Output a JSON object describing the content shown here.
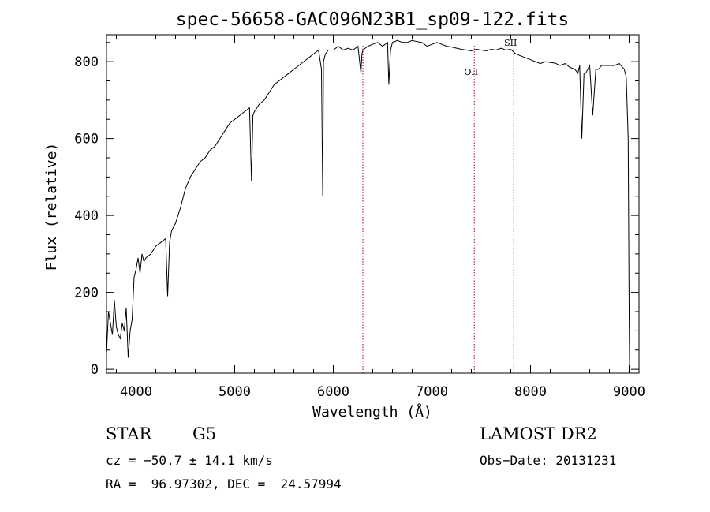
{
  "chart_data": {
    "type": "line",
    "title": "spec-56658-GAC096N23B1_sp09-122.fits",
    "xlabel": "Wavelength (Å)",
    "ylabel": "Flux (relative)",
    "xlim": [
      3700,
      9100
    ],
    "ylim": [
      -10,
      870
    ],
    "xticks": [
      4000,
      5000,
      6000,
      7000,
      8000,
      9000
    ],
    "yticks": [
      0,
      200,
      400,
      600,
      800
    ],
    "grid": false,
    "line_color": "#000000",
    "series": [
      {
        "x": [
          3700,
          3720,
          3740,
          3760,
          3780,
          3800,
          3820,
          3840,
          3860,
          3880,
          3900,
          3920,
          3940,
          3960,
          3980,
          4000,
          4020,
          4040,
          4060,
          4080,
          4100,
          4150,
          4200,
          4250,
          4300,
          4320,
          4340,
          4360,
          4400,
          4450,
          4500,
          4550,
          4600,
          4650,
          4700,
          4750,
          4800,
          4850,
          4900,
          4950,
          5000,
          5050,
          5100,
          5150,
          5170,
          5185,
          5200,
          5250,
          5300,
          5350,
          5400,
          5450,
          5500,
          5550,
          5600,
          5650,
          5700,
          5750,
          5800,
          5850,
          5880,
          5893,
          5900,
          5920,
          5950,
          6000,
          6050,
          6100,
          6150,
          6200,
          6250,
          6280,
          6290,
          6300,
          6350,
          6400,
          6450,
          6500,
          6550,
          6563,
          6580,
          6600,
          6650,
          6700,
          6750,
          6800,
          6850,
          6900,
          6950,
          7000,
          7050,
          7100,
          7150,
          7200,
          7250,
          7300,
          7350,
          7400,
          7450,
          7500,
          7550,
          7600,
          7650,
          7700,
          7750,
          7800,
          7850,
          7900,
          7950,
          8000,
          8050,
          8100,
          8150,
          8200,
          8250,
          8300,
          8350,
          8400,
          8450,
          8480,
          8498,
          8520,
          8542,
          8560,
          8600,
          8630,
          8662,
          8690,
          8720,
          8750,
          8800,
          8850,
          8900,
          8950,
          8970,
          8990,
          9000,
          9005
        ],
        "y": [
          40,
          150,
          120,
          90,
          180,
          110,
          90,
          80,
          120,
          100,
          160,
          30,
          100,
          130,
          240,
          260,
          290,
          250,
          300,
          280,
          290,
          300,
          320,
          330,
          340,
          190,
          330,
          360,
          380,
          420,
          470,
          500,
          520,
          540,
          550,
          570,
          580,
          600,
          620,
          640,
          650,
          660,
          670,
          680,
          490,
          660,
          670,
          690,
          700,
          720,
          740,
          750,
          760,
          770,
          780,
          790,
          800,
          810,
          820,
          830,
          780,
          450,
          800,
          820,
          830,
          830,
          840,
          830,
          835,
          830,
          840,
          770,
          820,
          830,
          840,
          845,
          850,
          840,
          850,
          740,
          830,
          850,
          855,
          850,
          850,
          855,
          852,
          850,
          840,
          845,
          850,
          845,
          840,
          838,
          835,
          832,
          830,
          828,
          832,
          830,
          828,
          832,
          830,
          835,
          830,
          832,
          820,
          815,
          810,
          805,
          800,
          795,
          800,
          798,
          796,
          790,
          795,
          785,
          780,
          770,
          790,
          600,
          770,
          770,
          790,
          660,
          780,
          780,
          790,
          790,
          790,
          790,
          795,
          780,
          760,
          600,
          150,
          0
        ]
      }
    ],
    "emission_lines": [
      {
        "label": "OII",
        "x": 7430
      },
      {
        "label": "SII",
        "x": 7830
      }
    ],
    "extra_marker_x": 6300
  },
  "info": {
    "obj_class": "STAR",
    "subclass": "G5",
    "survey": "LAMOST DR2",
    "cz": "cz = −50.7 ± 14.1 km/s",
    "obs_date": "Obs−Date: 20131231",
    "coords": "RA =  96.97302, DEC =  24.57994"
  }
}
